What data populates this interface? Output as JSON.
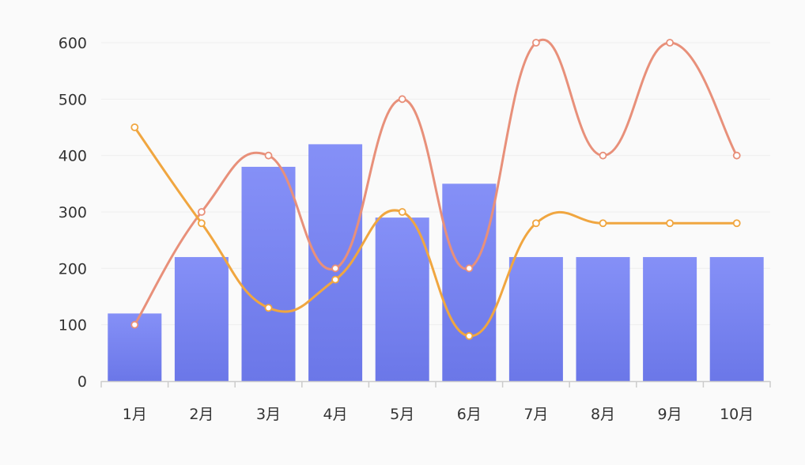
{
  "chart_data": {
    "type": "bar",
    "categories": [
      "1月",
      "2月",
      "3月",
      "4月",
      "5月",
      "6月",
      "7月",
      "8月",
      "9月",
      "10月"
    ],
    "series": [
      {
        "type": "bar",
        "values": [
          120,
          220,
          380,
          420,
          290,
          350,
          220,
          220,
          220,
          220
        ],
        "color": "#6b77e8",
        "color_top": "#8590f7"
      },
      {
        "type": "line",
        "smooth": true,
        "values": [
          100,
          300,
          400,
          200,
          500,
          200,
          600,
          400,
          600,
          400
        ],
        "color": "#e8907a"
      },
      {
        "type": "line",
        "smooth": true,
        "values": [
          450,
          280,
          130,
          180,
          300,
          80,
          280,
          280,
          280,
          280
        ],
        "color": "#f0a640"
      }
    ],
    "ylim": [
      0,
      600
    ],
    "yticks": [
      0,
      100,
      200,
      300,
      400,
      500,
      600
    ],
    "grid": true,
    "xlabel": "",
    "ylabel": "",
    "title": ""
  }
}
